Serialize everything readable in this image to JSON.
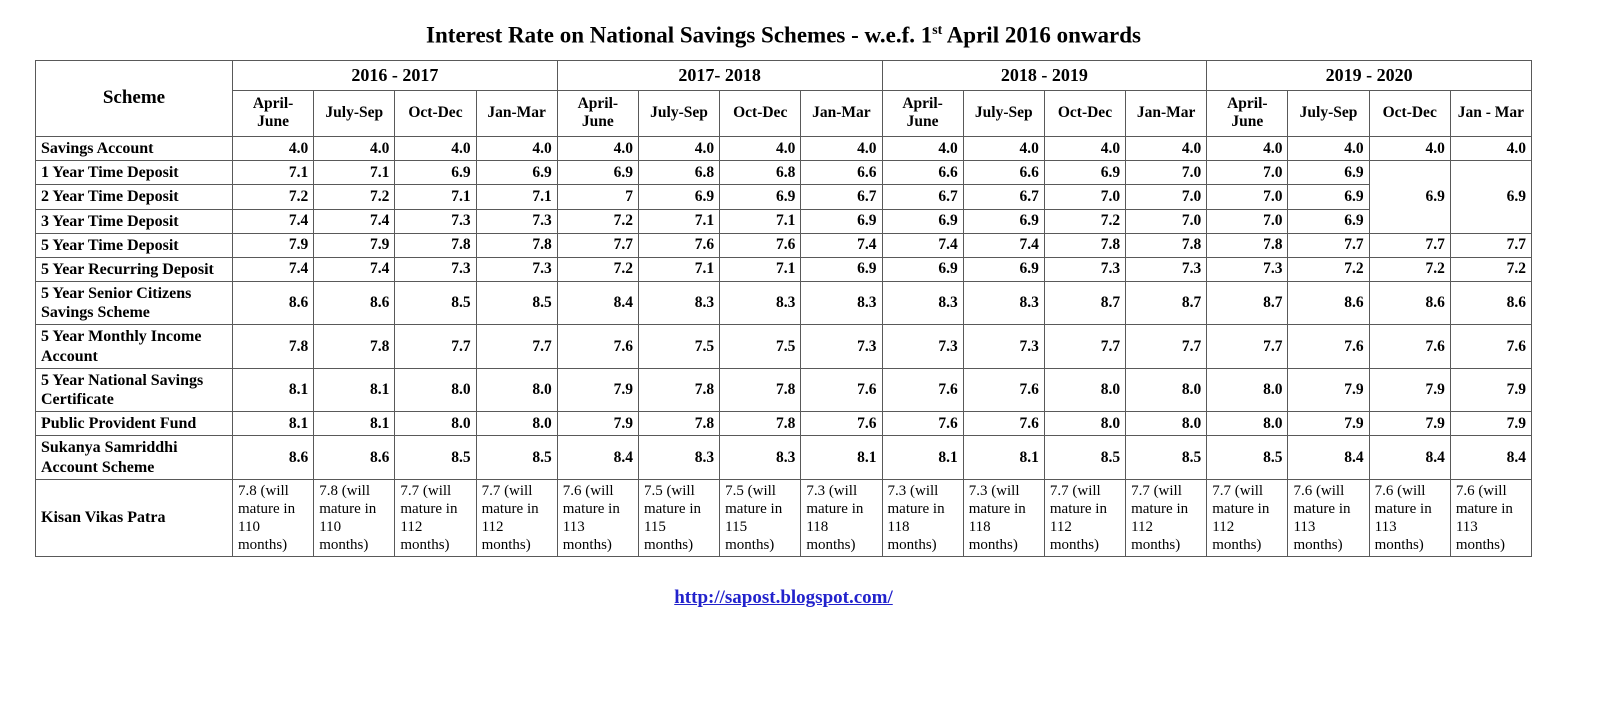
{
  "title": {
    "text_before_sup": "Interest Rate on National Savings Schemes - w.e.f. 1",
    "sup": "st",
    "text_after_sup": " April 2016 onwards"
  },
  "footer": {
    "link_text": "http://sapost.blogspot.com/"
  },
  "table": {
    "scheme_header": "Scheme",
    "year_groups": [
      "2016 - 2017",
      "2017- 2018",
      "2018 - 2019",
      "2019 - 2020"
    ],
    "quarter_headers": [
      "April-June",
      "July-Sep",
      "Oct-Dec",
      "Jan-Mar",
      "April-June",
      "July-Sep",
      "Oct-Dec",
      "Jan-Mar",
      "April-June",
      "July-Sep",
      "Oct-Dec",
      "Jan-Mar",
      "April-June",
      "July-Sep",
      "Oct-Dec",
      "Jan - Mar"
    ],
    "rows": [
      {
        "scheme": "Savings Account",
        "cells": [
          "4.0",
          "4.0",
          "4.0",
          "4.0",
          "4.0",
          "4.0",
          "4.0",
          "4.0",
          "4.0",
          "4.0",
          "4.0",
          "4.0",
          "4.0",
          "4.0",
          "4.0",
          "4.0"
        ]
      },
      {
        "scheme": "1 Year Time Deposit",
        "cells": [
          "7.1",
          "7.1",
          "6.9",
          "6.9",
          "6.9",
          "6.8",
          "6.8",
          "6.6",
          "6.6",
          "6.6",
          "6.9",
          "7.0",
          "7.0",
          "6.9",
          {
            "text": "6.9",
            "rowspan": 3
          },
          {
            "text": "6.9",
            "rowspan": 3
          }
        ]
      },
      {
        "scheme": "2 Year Time Deposit",
        "cells": [
          "7.2",
          "7.2",
          "7.1",
          "7.1",
          "7",
          "6.9",
          "6.9",
          "6.7",
          "6.7",
          "6.7",
          "7.0",
          "7.0",
          "7.0",
          "6.9"
        ]
      },
      {
        "scheme": "3 Year Time Deposit",
        "cells": [
          "7.4",
          "7.4",
          "7.3",
          "7.3",
          "7.2",
          "7.1",
          "7.1",
          "6.9",
          "6.9",
          "6.9",
          "7.2",
          "7.0",
          "7.0",
          "6.9"
        ]
      },
      {
        "scheme": "5 Year Time Deposit",
        "cells": [
          "7.9",
          "7.9",
          "7.8",
          "7.8",
          "7.7",
          "7.6",
          "7.6",
          "7.4",
          "7.4",
          "7.4",
          "7.8",
          "7.8",
          "7.8",
          "7.7",
          "7.7",
          "7.7"
        ]
      },
      {
        "scheme": "5 Year Recurring Deposit",
        "cells": [
          "7.4",
          "7.4",
          "7.3",
          "7.3",
          "7.2",
          "7.1",
          "7.1",
          "6.9",
          "6.9",
          "6.9",
          "7.3",
          "7.3",
          "7.3",
          "7.2",
          "7.2",
          "7.2"
        ]
      },
      {
        "scheme": "5 Year Senior Citizens Savings Scheme",
        "cells": [
          "8.6",
          "8.6",
          "8.5",
          "8.5",
          "8.4",
          "8.3",
          "8.3",
          "8.3",
          "8.3",
          "8.3",
          "8.7",
          "8.7",
          "8.7",
          "8.6",
          "8.6",
          "8.6"
        ]
      },
      {
        "scheme": "5 Year Monthly Income Account",
        "cells": [
          "7.8",
          "7.8",
          "7.7",
          "7.7",
          "7.6",
          "7.5",
          "7.5",
          "7.3",
          "7.3",
          "7.3",
          "7.7",
          "7.7",
          "7.7",
          "7.6",
          "7.6",
          "7.6"
        ]
      },
      {
        "scheme": "5 Year National Savings Certificate",
        "cells": [
          "8.1",
          "8.1",
          "8.0",
          "8.0",
          "7.9",
          "7.8",
          "7.8",
          "7.6",
          "7.6",
          "7.6",
          "8.0",
          "8.0",
          "8.0",
          "7.9",
          "7.9",
          "7.9"
        ]
      },
      {
        "scheme": "Public Provident Fund",
        "cells": [
          "8.1",
          "8.1",
          "8.0",
          "8.0",
          "7.9",
          "7.8",
          "7.8",
          "7.6",
          "7.6",
          "7.6",
          "8.0",
          "8.0",
          "8.0",
          "7.9",
          "7.9",
          "7.9"
        ]
      },
      {
        "scheme": "Sukanya Samriddhi Account Scheme",
        "cells": [
          "8.6",
          "8.6",
          "8.5",
          "8.5",
          "8.4",
          "8.3",
          "8.3",
          "8.1",
          "8.1",
          "8.1",
          "8.5",
          "8.5",
          "8.5",
          "8.4",
          "8.4",
          "8.4"
        ]
      },
      {
        "scheme": "Kisan Vikas Patra",
        "kvp": true,
        "cells": [
          "7.8 (will mature in 110 months)",
          "7.8 (will mature in 110 months)",
          "7.7 (will mature in 112 months)",
          "7.7 (will mature in 112 months)",
          "7.6 (will mature in 113 months)",
          "7.5 (will mature in 115 months)",
          "7.5 (will mature in 115 months)",
          "7.3 (will mature in 118 months)",
          "7.3 (will mature in 118 months)",
          "7.3 (will mature in 118 months)",
          "7.7 (will mature in 112 months)",
          "7.7 (will mature in 112 months)",
          "7.7 (will mature in 112 months)",
          "7.6 (will mature in 113 months)",
          "7.6 (will mature in 113 months)",
          "7.6 (will mature in 113 months)"
        ]
      }
    ]
  }
}
